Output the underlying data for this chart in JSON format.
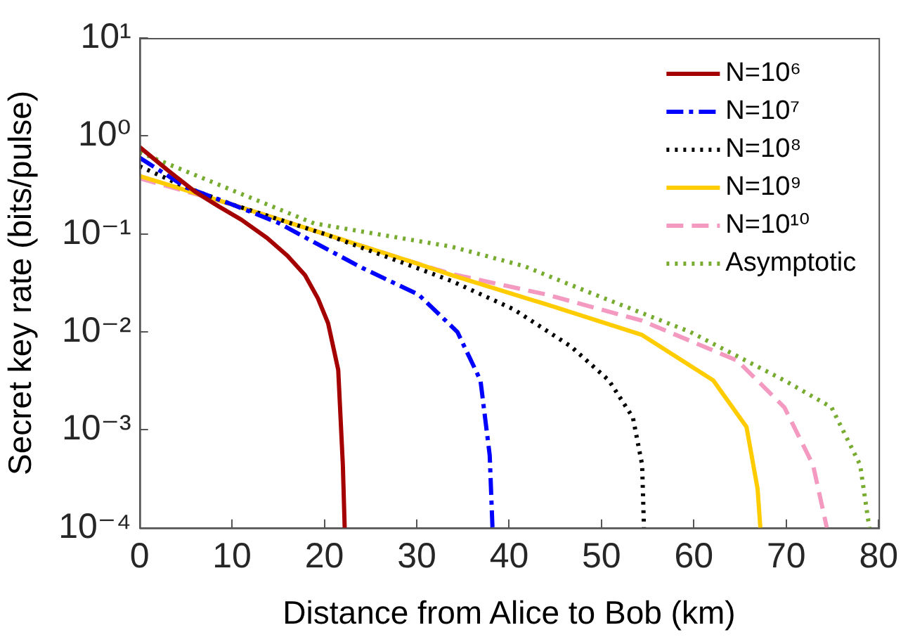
{
  "chart_data": {
    "type": "line",
    "xlabel": "Distance from Alice to Bob (km)",
    "ylabel": "Secret key rate (bits/pulse)",
    "log": "y",
    "xlim": [
      0,
      80
    ],
    "xticks": [
      0,
      10,
      20,
      30,
      40,
      50,
      60,
      70,
      80
    ],
    "ylim": [
      0.0001,
      10
    ],
    "yticks": [
      {
        "value": 10,
        "label": "10¹"
      },
      {
        "value": 1,
        "label": "10⁰"
      },
      {
        "value": 0.1,
        "label": "10⁻¹"
      },
      {
        "value": 0.01,
        "label": "10⁻²"
      },
      {
        "value": 0.001,
        "label": "10⁻³"
      },
      {
        "value": 0.0001,
        "label": "10⁻⁴"
      }
    ],
    "grid": false,
    "legend": "top right",
    "marker": "none",
    "series": [
      {
        "name": "N=10⁶",
        "color": "#a50000",
        "line_style": "solid",
        "x": [
          0,
          3,
          6,
          8.6,
          11,
          13.8,
          16,
          17.9,
          19.3,
          20.4,
          21.5,
          22,
          22.2
        ],
        "values": [
          0.77,
          0.45,
          0.27,
          0.19,
          0.14,
          0.091,
          0.06,
          0.038,
          0.022,
          0.0123,
          0.0041,
          0.00044,
          0.0001
        ]
      },
      {
        "name": "N=10⁷",
        "color": "#0000ff",
        "line_style": "dashdot",
        "x": [
          0,
          5,
          10,
          15,
          18.9,
          24.1,
          30.2,
          34.4,
          36.9,
          37.9,
          38.2
        ],
        "values": [
          0.6,
          0.3,
          0.2,
          0.13,
          0.082,
          0.045,
          0.024,
          0.01,
          0.0032,
          0.00055,
          0.0001
        ]
      },
      {
        "name": "N=10⁸",
        "color": "#000000",
        "line_style": "dotted",
        "x": [
          0,
          5,
          10,
          20,
          30,
          33.8,
          40.5,
          46.7,
          50.8,
          53.4,
          54.4,
          54.6
        ],
        "values": [
          0.49,
          0.3,
          0.2,
          0.1,
          0.045,
          0.033,
          0.017,
          0.0071,
          0.0032,
          0.00134,
          0.00044,
          0.0001
        ]
      },
      {
        "name": "N=10⁹",
        "color": "#ffcc00",
        "line_style": "solid",
        "x": [
          0,
          10,
          20,
          30,
          33.8,
          44.1,
          54.4,
          62.1,
          65.7,
          66.9,
          67.2
        ],
        "values": [
          0.39,
          0.2,
          0.1,
          0.05,
          0.038,
          0.019,
          0.0093,
          0.0032,
          0.00107,
          0.00025,
          0.0001
        ]
      },
      {
        "name": "N=10¹⁰",
        "color": "#f49ac1",
        "line_style": "dashed",
        "x": [
          0,
          10,
          20,
          30,
          33.8,
          44.1,
          54.4,
          64.7,
          69.8,
          72.9,
          74.4
        ],
        "values": [
          0.37,
          0.2,
          0.1,
          0.05,
          0.039,
          0.024,
          0.013,
          0.0051,
          0.0017,
          0.00044,
          0.0001
        ]
      },
      {
        "name": "Asymptotic",
        "color": "#77ac30",
        "line_style": "dotted",
        "x": [
          0,
          10,
          18.9,
          33.8,
          41.6,
          49.3,
          59.6,
          69.8,
          74.9,
          78,
          79
        ],
        "values": [
          0.68,
          0.28,
          0.128,
          0.074,
          0.047,
          0.024,
          0.01,
          0.0032,
          0.0017,
          0.00044,
          0.0001
        ]
      }
    ]
  }
}
